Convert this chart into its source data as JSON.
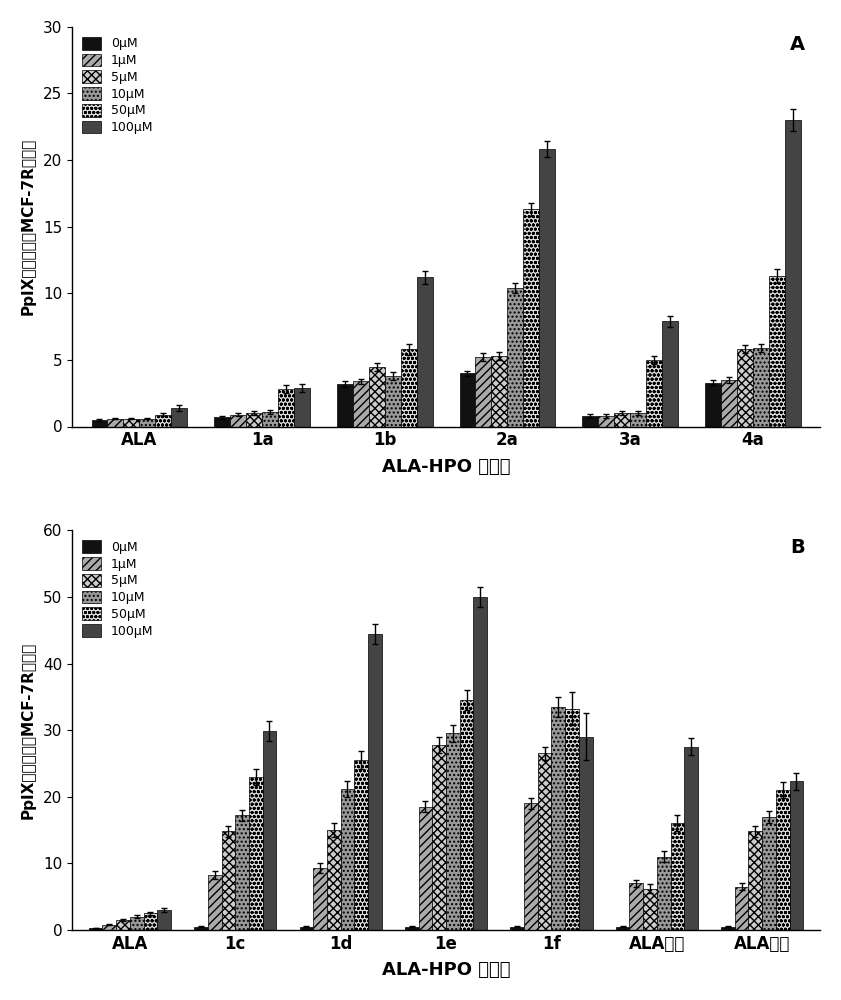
{
  "panel_A": {
    "categories": [
      "ALA",
      "1a",
      "1b",
      "2a",
      "3a",
      "4a"
    ],
    "ylabel": "PpIX荧光强度（MCF-7R细胞）",
    "xlabel": "ALA-HPO 缀合物",
    "ylim": [
      0,
      30
    ],
    "yticks": [
      0,
      5,
      10,
      15,
      20,
      25,
      30
    ],
    "label": "A",
    "series": {
      "0μM": [
        0.5,
        0.7,
        3.2,
        4.0,
        0.8,
        3.3
      ],
      "1μM": [
        0.6,
        0.9,
        3.4,
        5.2,
        0.8,
        3.5
      ],
      "5μM": [
        0.6,
        1.0,
        4.5,
        5.3,
        1.0,
        5.8
      ],
      "10μM": [
        0.6,
        1.1,
        3.8,
        10.4,
        1.0,
        5.9
      ],
      "50μM": [
        0.9,
        2.8,
        5.8,
        16.3,
        5.0,
        11.3
      ],
      "100μM": [
        1.4,
        2.9,
        11.2,
        20.8,
        7.9,
        23.0
      ]
    },
    "errors": {
      "0μM": [
        0.05,
        0.1,
        0.2,
        0.2,
        0.15,
        0.2
      ],
      "1μM": [
        0.05,
        0.1,
        0.2,
        0.3,
        0.15,
        0.2
      ],
      "5μM": [
        0.05,
        0.15,
        0.3,
        0.3,
        0.15,
        0.3
      ],
      "10μM": [
        0.05,
        0.15,
        0.3,
        0.4,
        0.15,
        0.3
      ],
      "50μM": [
        0.1,
        0.3,
        0.4,
        0.5,
        0.3,
        0.5
      ],
      "100μM": [
        0.2,
        0.3,
        0.5,
        0.6,
        0.4,
        0.8
      ]
    }
  },
  "panel_B": {
    "categories": [
      "ALA",
      "1c",
      "1d",
      "1e",
      "1f",
      "ALA己酯",
      "ALA辛酯"
    ],
    "ylabel": "PpIX荧光强度（MCF-7R细胞）",
    "xlabel": "ALA-HPO 缀合物",
    "ylim": [
      0,
      60
    ],
    "yticks": [
      0,
      10,
      20,
      30,
      40,
      50,
      60
    ],
    "label": "B",
    "series": {
      "0μM": [
        0.3,
        0.5,
        0.5,
        0.5,
        0.5,
        0.5,
        0.5
      ],
      "1μM": [
        0.8,
        8.3,
        9.3,
        18.5,
        19.0,
        7.0,
        6.5
      ],
      "5μM": [
        1.5,
        14.8,
        15.0,
        27.8,
        26.5,
        6.2,
        14.8
      ],
      "10μM": [
        2.0,
        17.2,
        21.2,
        29.5,
        33.5,
        11.0,
        17.0
      ],
      "50μM": [
        2.5,
        23.0,
        25.5,
        34.5,
        33.2,
        16.0,
        21.0
      ],
      "100μM": [
        3.0,
        29.8,
        44.5,
        50.0,
        29.0,
        27.5,
        22.3
      ]
    },
    "errors": {
      "0μM": [
        0.05,
        0.1,
        0.1,
        0.1,
        0.1,
        0.1,
        0.1
      ],
      "1μM": [
        0.1,
        0.6,
        0.8,
        0.8,
        0.8,
        0.5,
        0.5
      ],
      "5μM": [
        0.1,
        0.8,
        1.0,
        1.2,
        1.0,
        0.7,
        0.8
      ],
      "10μM": [
        0.2,
        0.8,
        1.2,
        1.3,
        1.5,
        0.8,
        0.9
      ],
      "50μM": [
        0.2,
        1.2,
        1.3,
        1.5,
        2.5,
        1.2,
        1.2
      ],
      "100μM": [
        0.3,
        1.5,
        1.5,
        1.5,
        3.5,
        1.3,
        1.3
      ]
    }
  },
  "series_order": [
    "0μM",
    "1μM",
    "5μM",
    "10μM",
    "50μM",
    "100μM"
  ]
}
